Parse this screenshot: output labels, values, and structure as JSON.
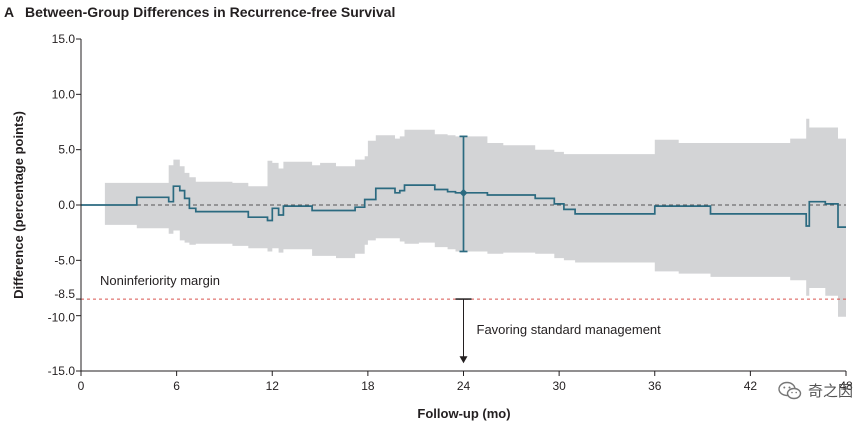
{
  "panel": {
    "letter": "A",
    "title": "Between-Group Differences in Recurrence-free Survival"
  },
  "watermark": {
    "text": "奇之因",
    "icon": "wechat-icon"
  },
  "colors": {
    "line": "#2b6a80",
    "band": "#d3d4d6",
    "margin": "#d9544f",
    "zero": "#555555",
    "axis": "#231f20"
  },
  "chart_data": {
    "type": "line",
    "xlabel": "Follow-up (mo)",
    "ylabel": "Difference (percentage points)",
    "xlim": [
      0,
      48
    ],
    "ylim": [
      -15,
      15
    ],
    "xticks": [
      0,
      6,
      12,
      18,
      24,
      30,
      36,
      42,
      48
    ],
    "yticks": [
      {
        "value": 15,
        "label": "15.0"
      },
      {
        "value": 10,
        "label": "10.0"
      },
      {
        "value": 5,
        "label": "5.0"
      },
      {
        "value": 0,
        "label": "0.0"
      },
      {
        "value": -5,
        "label": "-5.0"
      },
      {
        "value": -8.5,
        "label": "-8.5"
      },
      {
        "value": -10,
        "label": "-10.0"
      },
      {
        "value": -15,
        "label": "-15.0"
      }
    ],
    "reference_lines": [
      {
        "y": 0,
        "style": "dashed"
      },
      {
        "y": -8.5,
        "style": "dashed",
        "label": "Noninferiority margin"
      }
    ],
    "series": [
      {
        "type": "step",
        "x": [
          0,
          1.5,
          3.5,
          5.5,
          5.8,
          6.2,
          6.5,
          6.8,
          7.2,
          9.5,
          10.5,
          11.7,
          12,
          12.4,
          12.7,
          14.5,
          15,
          16,
          17.2,
          17.8,
          18,
          18.5,
          19.7,
          20,
          20.3,
          21.2,
          22.2,
          23,
          23.5,
          25.5,
          26.5,
          28.5,
          29.7,
          30.3,
          31,
          36,
          37.5,
          39.5,
          44.5,
          45.5,
          45.7,
          46.7,
          47.5,
          48
        ],
        "y": [
          0,
          0,
          0.7,
          0.3,
          1.7,
          1.3,
          0.6,
          -0.3,
          -0.6,
          -0.6,
          -1.1,
          -1.4,
          -0.3,
          -0.9,
          -0.1,
          -0.5,
          -0.5,
          -0.5,
          -0.2,
          0.5,
          0.5,
          1.5,
          1.1,
          1.3,
          1.8,
          1.8,
          1.4,
          1.2,
          1.1,
          0.9,
          0.9,
          0.6,
          0.1,
          -0.4,
          -0.8,
          -0.1,
          -0.1,
          -0.8,
          -0.8,
          -1.9,
          0.3,
          0.1,
          -2.0,
          -2.0
        ]
      }
    ],
    "ci_band": {
      "x": [
        0,
        1.5,
        3.5,
        5.5,
        5.8,
        6.2,
        6.5,
        6.8,
        7.2,
        9.5,
        10.5,
        11.7,
        12,
        12.4,
        12.7,
        14.5,
        15,
        16,
        17.2,
        17.8,
        18,
        18.5,
        19.7,
        20,
        20.3,
        21.2,
        22.2,
        23,
        23.5,
        25.5,
        26.5,
        28.5,
        29.7,
        30.3,
        31,
        36,
        37.5,
        39.5,
        44.5,
        45.5,
        45.7,
        46.7,
        47.5,
        48
      ],
      "upper": [
        0,
        2.0,
        2.0,
        3.6,
        4.1,
        3.5,
        2.9,
        2.5,
        2.1,
        2.0,
        1.7,
        4.0,
        3.8,
        3.3,
        3.9,
        3.6,
        3.8,
        3.5,
        4.1,
        4.4,
        5.8,
        6.3,
        6.0,
        6.2,
        6.8,
        6.8,
        6.4,
        6.3,
        6.2,
        5.6,
        5.4,
        5.0,
        4.8,
        4.6,
        4.6,
        5.9,
        5.6,
        5.6,
        6.0,
        7.8,
        7.0,
        7.0,
        6.0,
        6.0
      ],
      "lower": [
        0,
        -1.8,
        -2.1,
        -2.6,
        -2.3,
        -3.2,
        -3.4,
        -3.6,
        -3.5,
        -3.7,
        -3.9,
        -4.2,
        -3.9,
        -4.3,
        -4.0,
        -4.6,
        -4.6,
        -4.8,
        -4.4,
        -3.6,
        -3.2,
        -3.0,
        -3.0,
        -3.3,
        -3.5,
        -3.4,
        -3.8,
        -4.0,
        -4.2,
        -4.4,
        -4.3,
        -4.4,
        -4.8,
        -5.0,
        -5.2,
        -6.0,
        -6.2,
        -6.5,
        -6.8,
        -8.2,
        -7.5,
        -8.2,
        -10.1,
        -10.1
      ]
    },
    "highlight": {
      "x": 24,
      "y": 1.1,
      "lower": -4.2,
      "upper": 6.2
    },
    "arrow": {
      "x": 24,
      "from": -8.5,
      "to": -14.3,
      "label": "Favoring standard management"
    }
  }
}
